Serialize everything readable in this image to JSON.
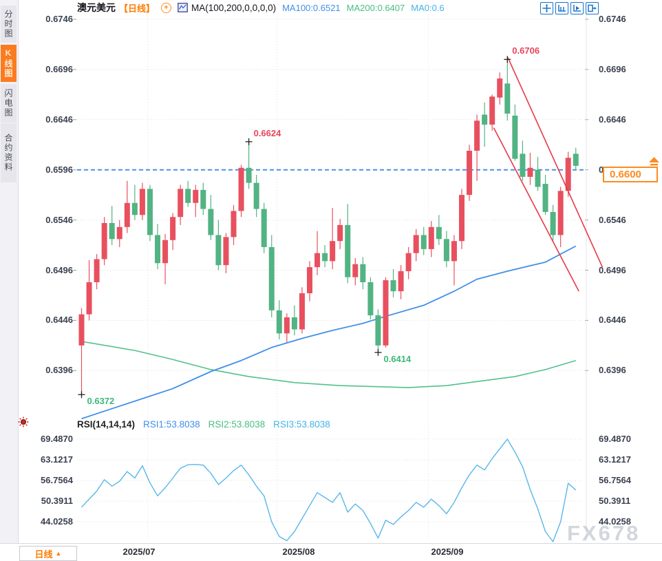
{
  "app": {
    "header": {
      "symbol": "澳元美元",
      "period": "【日线】",
      "plus_glyph": "+",
      "ma_settings": "MA(100,200,0,0,0,0)",
      "ma100": "MA100:0.6521",
      "ma200": "MA200:0.6407",
      "ma0": "MA0:0.6"
    },
    "toolbar_icons": [
      "pan-crosshair-icon",
      "axis-scale-icon",
      "axis-play-icon",
      "detach-chart-icon"
    ],
    "sidebar_tabs": [
      {
        "label": "分时图",
        "active": false
      },
      {
        "label": "K线图",
        "active": true
      },
      {
        "label": "闪电图",
        "active": false
      },
      {
        "label": "合约资料",
        "active": false
      }
    ],
    "rsi_header": {
      "title": "RSI(14,14,14)",
      "rsi1": "RSI1:53.8038",
      "rsi2": "RSI2:53.8038",
      "rsi3": "RSI3:53.8038"
    },
    "current_price": "0.6600",
    "watermark": "FX678",
    "bottom_bar": {
      "period_label": "日线",
      "period_arrow": "▲"
    }
  },
  "colors": {
    "up": "#e8505f",
    "down": "#52b383",
    "ma100": "#3f8fe8",
    "ma200": "#52c08c",
    "rsi_line": "#57b7e9",
    "trend": "#e63946",
    "dashed_line": "#4a90e8",
    "anno_high": "#e8445a",
    "anno_low": "#3cb878",
    "grid": "#dcdcdc",
    "accent": "#ff8a1e"
  },
  "chart_data": [
    {
      "type": "candlestick",
      "title": "澳元美元 日线 (AUD/USD daily)",
      "ylim": [
        0.635,
        0.6746
      ],
      "yticks": [
        "0.6746",
        "0.6696",
        "0.6646",
        "0.6596",
        "0.6546",
        "0.6496",
        "0.6446",
        "0.6396"
      ],
      "x_month_labels": [
        {
          "label": "2025/07",
          "pos": 7.56
        },
        {
          "label": "2025/08",
          "pos": 28.55
        },
        {
          "label": "2025/09",
          "pos": 48.1
        }
      ],
      "month_grid_pos": [
        8.7,
        25.7,
        45.6
      ],
      "ohlc": [
        [
          0.6421,
          0.6458,
          0.6372,
          0.6452
        ],
        [
          0.6452,
          0.6506,
          0.6446,
          0.6484
        ],
        [
          0.6484,
          0.6512,
          0.6477,
          0.6507
        ],
        [
          0.6507,
          0.6549,
          0.6501,
          0.6543
        ],
        [
          0.6543,
          0.656,
          0.6521,
          0.6527
        ],
        [
          0.6527,
          0.6546,
          0.6519,
          0.6539
        ],
        [
          0.6539,
          0.6585,
          0.6533,
          0.6563
        ],
        [
          0.6563,
          0.6581,
          0.6546,
          0.6551
        ],
        [
          0.6551,
          0.6583,
          0.6546,
          0.6577
        ],
        [
          0.6577,
          0.6581,
          0.6525,
          0.6531
        ],
        [
          0.6531,
          0.6542,
          0.6497,
          0.6503
        ],
        [
          0.6503,
          0.6532,
          0.6482,
          0.6526
        ],
        [
          0.6526,
          0.6553,
          0.6516,
          0.6549
        ],
        [
          0.6549,
          0.6581,
          0.6541,
          0.6577
        ],
        [
          0.6577,
          0.6585,
          0.6559,
          0.6563
        ],
        [
          0.6563,
          0.6581,
          0.6549,
          0.6576
        ],
        [
          0.6576,
          0.6583,
          0.6551,
          0.6557
        ],
        [
          0.6557,
          0.6571,
          0.6526,
          0.6531
        ],
        [
          0.6531,
          0.6546,
          0.6496,
          0.6501
        ],
        [
          0.6501,
          0.6533,
          0.6493,
          0.6529
        ],
        [
          0.6529,
          0.6561,
          0.6521,
          0.6555
        ],
        [
          0.6555,
          0.6601,
          0.6549,
          0.6598
        ],
        [
          0.6598,
          0.6624,
          0.6577,
          0.6583
        ],
        [
          0.6583,
          0.6591,
          0.6549,
          0.6557
        ],
        [
          0.6557,
          0.6563,
          0.6513,
          0.6519
        ],
        [
          0.6519,
          0.6531,
          0.6449,
          0.6456
        ],
        [
          0.6456,
          0.6466,
          0.6427,
          0.6433
        ],
        [
          0.6433,
          0.6453,
          0.6424,
          0.6449
        ],
        [
          0.6449,
          0.6461,
          0.6431,
          0.6437
        ],
        [
          0.6437,
          0.6479,
          0.6433,
          0.6473
        ],
        [
          0.6473,
          0.6505,
          0.6465,
          0.6499
        ],
        [
          0.6499,
          0.6535,
          0.6491,
          0.6513
        ],
        [
          0.6513,
          0.6521,
          0.6499,
          0.6505
        ],
        [
          0.6505,
          0.6558,
          0.6497,
          0.6525
        ],
        [
          0.6525,
          0.6547,
          0.6517,
          0.6541
        ],
        [
          0.6541,
          0.6562,
          0.6483,
          0.6489
        ],
        [
          0.6489,
          0.6508,
          0.6481,
          0.6502
        ],
        [
          0.6502,
          0.6509,
          0.6477,
          0.6484
        ],
        [
          0.6484,
          0.6489,
          0.6447,
          0.6451
        ],
        [
          0.6451,
          0.6457,
          0.6414,
          0.6421
        ],
        [
          0.6421,
          0.6489,
          0.6419,
          0.6486
        ],
        [
          0.6486,
          0.6497,
          0.6469,
          0.6475
        ],
        [
          0.6475,
          0.6501,
          0.6467,
          0.6495
        ],
        [
          0.6495,
          0.6519,
          0.6487,
          0.6513
        ],
        [
          0.6513,
          0.6537,
          0.6505,
          0.6531
        ],
        [
          0.6531,
          0.6539,
          0.6511,
          0.6517
        ],
        [
          0.6517,
          0.6545,
          0.6509,
          0.6539
        ],
        [
          0.6539,
          0.6551,
          0.6521,
          0.6527
        ],
        [
          0.6527,
          0.6535,
          0.6499,
          0.6505
        ],
        [
          0.6505,
          0.6531,
          0.6481,
          0.6525
        ],
        [
          0.6525,
          0.6577,
          0.6517,
          0.6571
        ],
        [
          0.6571,
          0.6621,
          0.6565,
          0.6615
        ],
        [
          0.6615,
          0.6651,
          0.6585,
          0.6645
        ],
        [
          0.6651,
          0.6663,
          0.6619,
          0.6641
        ],
        [
          0.6641,
          0.6671,
          0.6635,
          0.6669
        ],
        [
          0.6668,
          0.6693,
          0.6661,
          0.6687
        ],
        [
          0.6682,
          0.6706,
          0.6645,
          0.6652
        ],
        [
          0.665,
          0.6661,
          0.6605,
          0.6607
        ],
        [
          0.6612,
          0.6625,
          0.6585,
          0.6589
        ],
        [
          0.6589,
          0.6613,
          0.6581,
          0.6598
        ],
        [
          0.6596,
          0.6609,
          0.6575,
          0.6579
        ],
        [
          0.6582,
          0.6591,
          0.6551,
          0.6554
        ],
        [
          0.6554,
          0.6561,
          0.6525,
          0.6531
        ],
        [
          0.6531,
          0.6579,
          0.6519,
          0.6575
        ],
        [
          0.6575,
          0.6614,
          0.6569,
          0.6608
        ],
        [
          0.6612,
          0.6618,
          0.6595,
          0.66
        ]
      ],
      "annotations": [
        {
          "text": "0.6706",
          "candle": 57,
          "at": "high",
          "kind": "hi"
        },
        {
          "text": "0.6624",
          "candle": 23,
          "at": "high",
          "kind": "hi"
        },
        {
          "text": "0.6414",
          "candle": 40,
          "at": "low",
          "kind": "lo"
        },
        {
          "text": "0.6372",
          "candle": 1,
          "at": "low",
          "kind": "lo"
        }
      ],
      "hline": 0.6596,
      "price_marker": 0.66,
      "ma100_points": [
        [
          0,
          0.6348
        ],
        [
          4,
          0.6358
        ],
        [
          8,
          0.6368
        ],
        [
          12,
          0.6378
        ],
        [
          17,
          0.6395
        ],
        [
          21,
          0.6406
        ],
        [
          25,
          0.6419
        ],
        [
          29,
          0.6428
        ],
        [
          33,
          0.6436
        ],
        [
          37,
          0.6443
        ],
        [
          40,
          0.645
        ],
        [
          45,
          0.6461
        ],
        [
          49,
          0.6475
        ],
        [
          52,
          0.6487
        ],
        [
          56,
          0.6495
        ],
        [
          61,
          0.6504
        ],
        [
          65,
          0.652
        ]
      ],
      "ma200_points": [
        [
          0,
          0.6425
        ],
        [
          7,
          0.6416
        ],
        [
          12,
          0.6407
        ],
        [
          17,
          0.6397
        ],
        [
          22,
          0.639
        ],
        [
          28,
          0.6384
        ],
        [
          34,
          0.6381
        ],
        [
          43,
          0.6379
        ],
        [
          48,
          0.6381
        ],
        [
          52,
          0.6385
        ],
        [
          57,
          0.639
        ],
        [
          61,
          0.6397
        ],
        [
          65,
          0.6406
        ]
      ],
      "trendlines": [
        {
          "i1": 56.06,
          "p1": 0.6708,
          "i2": 68.5,
          "p2": 0.6499
        },
        {
          "i1": 54.2,
          "p1": 0.6638,
          "i2": 65.4,
          "p2": 0.6475
        }
      ]
    },
    {
      "type": "line",
      "name": "RSI(14,14,14)",
      "yticks": [
        "69.4870",
        "63.1217",
        "56.7564",
        "50.3911",
        "44.0258"
      ],
      "ytick_values": [
        69.487,
        63.1217,
        56.7564,
        50.3911,
        44.0258
      ],
      "values": [
        48.5,
        51.0,
        53.5,
        57.0,
        55.0,
        56.5,
        59.5,
        57.5,
        61.3,
        56.0,
        52.0,
        54.5,
        57.5,
        60.5,
        61.6,
        61.7,
        61.5,
        59.0,
        55.5,
        57.5,
        59.8,
        61.5,
        58.5,
        55.0,
        52.0,
        44.0,
        39.5,
        38.2,
        41.0,
        45.0,
        49.0,
        53.0,
        51.5,
        50.0,
        53.0,
        47.0,
        49.5,
        47.5,
        43.5,
        39.0,
        44.5,
        43.2,
        45.5,
        47.5,
        50.0,
        48.5,
        51.0,
        49.0,
        46.5,
        50.0,
        54.5,
        58.5,
        61.5,
        60.0,
        63.5,
        66.5,
        69.5,
        65.5,
        61.0,
        54.0,
        48.0,
        41.0,
        37.9,
        44.0,
        55.9,
        53.8038
      ]
    }
  ]
}
